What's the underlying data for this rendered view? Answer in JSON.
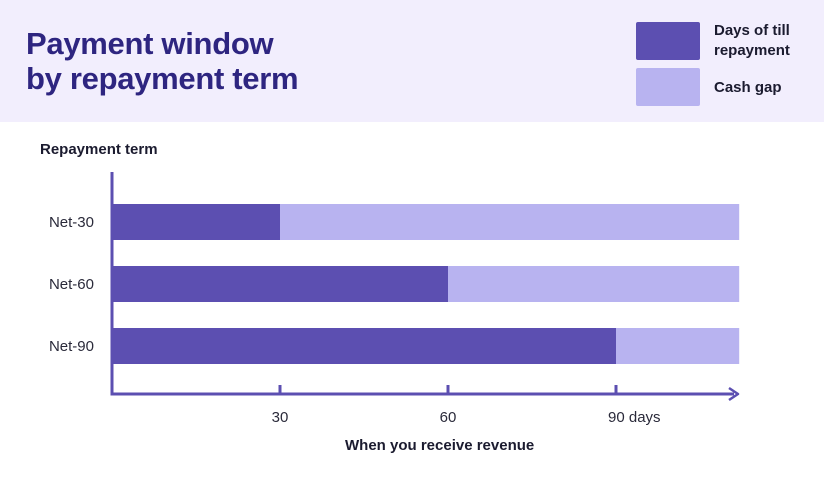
{
  "title_lines": [
    "Payment window",
    "by repayment term"
  ],
  "legend": [
    {
      "label": "Days of till repayment",
      "color": "#5c4fb1"
    },
    {
      "label": "Cash gap",
      "color": "#b8b3f0"
    }
  ],
  "chart_data": {
    "type": "bar",
    "orientation": "horizontal",
    "stacked": true,
    "title": "Payment window by repayment term",
    "ylabel": "Repayment term",
    "xlabel": "When you receive revenue",
    "categories": [
      "Net-30",
      "Net-60",
      "Net-90"
    ],
    "series": [
      {
        "name": "Days of till repayment",
        "values": [
          30,
          60,
          90
        ],
        "color": "#5c4fb1"
      },
      {
        "name": "Cash gap",
        "values": [
          82,
          52,
          22
        ],
        "color": "#b8b3f0"
      }
    ],
    "xlim": [
      0,
      112
    ],
    "xticks": [
      30,
      60,
      90
    ],
    "xtick_labels": [
      "30",
      "60",
      "90 days"
    ],
    "axis_color": "#5c4fb1",
    "grid": false,
    "legend_position": "top-right"
  }
}
